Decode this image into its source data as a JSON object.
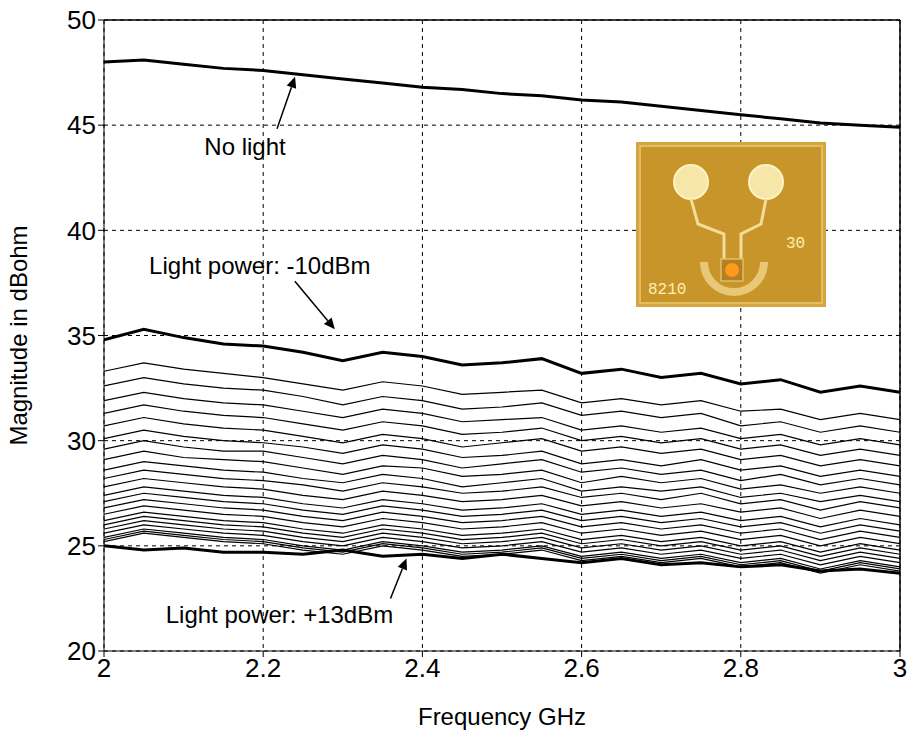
{
  "chart_data": {
    "type": "line",
    "xlabel": "Frequency GHz",
    "ylabel": "Magnitude in  dBohm",
    "x": [
      2,
      2.05,
      2.1,
      2.15,
      2.2,
      2.25,
      2.3,
      2.35,
      2.4,
      2.45,
      2.5,
      2.55,
      2.6,
      2.65,
      2.7,
      2.75,
      2.8,
      2.85,
      2.9,
      2.95,
      3
    ],
    "xlim": [
      2,
      3
    ],
    "xticks": [
      2,
      2.2,
      2.4,
      2.6,
      2.8,
      3
    ],
    "ylim": [
      20,
      50
    ],
    "yticks": [
      20,
      25,
      30,
      35,
      40,
      45,
      50
    ],
    "grid": true,
    "series": [
      {
        "color": "#000000",
        "values": [
          48.0,
          48.1,
          47.9,
          47.7,
          47.6,
          47.4,
          47.2,
          47.0,
          46.8,
          46.7,
          46.5,
          46.4,
          46.2,
          46.1,
          45.9,
          45.7,
          45.5,
          45.3,
          45.1,
          45.0,
          44.9
        ]
      },
      {
        "color": "#000000",
        "values": [
          34.8,
          35.3,
          34.9,
          34.6,
          34.5,
          34.2,
          33.8,
          34.2,
          34.0,
          33.6,
          33.7,
          33.9,
          33.2,
          33.4,
          33.0,
          33.2,
          32.7,
          32.9,
          32.3,
          32.6,
          32.3
        ]
      },
      {
        "color": "#000000",
        "values": [
          33.3,
          33.7,
          33.4,
          33.2,
          33.0,
          32.7,
          32.4,
          32.8,
          32.6,
          32.2,
          32.3,
          32.4,
          31.8,
          32.0,
          31.7,
          31.9,
          31.4,
          31.5,
          31.0,
          31.3,
          31.0
        ]
      },
      {
        "color": "#000000",
        "values": [
          32.6,
          33.0,
          32.7,
          32.5,
          32.4,
          32.1,
          31.7,
          32.1,
          31.9,
          31.5,
          31.6,
          31.8,
          31.2,
          31.4,
          31.1,
          31.3,
          30.7,
          30.9,
          30.4,
          30.7,
          30.4
        ]
      },
      {
        "color": "#000000",
        "values": [
          31.9,
          32.3,
          32.0,
          31.8,
          31.7,
          31.4,
          31.1,
          31.5,
          31.3,
          30.9,
          31.0,
          31.1,
          30.5,
          30.7,
          30.4,
          30.6,
          30.1,
          30.3,
          29.8,
          30.1,
          29.8
        ]
      },
      {
        "color": "#000000",
        "values": [
          31.3,
          31.7,
          31.4,
          31.2,
          31.1,
          30.8,
          30.5,
          30.9,
          30.7,
          30.3,
          30.4,
          30.6,
          30.0,
          30.2,
          29.9,
          30.1,
          29.6,
          29.8,
          29.3,
          29.6,
          29.3
        ]
      },
      {
        "color": "#000000",
        "values": [
          30.7,
          31.1,
          30.8,
          30.6,
          30.5,
          30.2,
          29.9,
          30.3,
          30.1,
          29.7,
          29.9,
          30.1,
          29.5,
          29.7,
          29.4,
          29.6,
          29.1,
          29.3,
          28.8,
          29.1,
          28.8
        ]
      },
      {
        "color": "#000000",
        "values": [
          30.1,
          30.5,
          30.2,
          30.0,
          29.9,
          29.7,
          29.4,
          29.8,
          29.6,
          29.2,
          29.3,
          29.5,
          28.9,
          29.1,
          28.8,
          29.1,
          28.6,
          28.8,
          28.3,
          28.6,
          28.3
        ]
      },
      {
        "color": "#000000",
        "values": [
          29.6,
          30.0,
          29.7,
          29.5,
          29.5,
          29.2,
          28.9,
          29.3,
          29.1,
          28.7,
          28.9,
          29.1,
          28.5,
          28.7,
          28.4,
          28.6,
          28.1,
          28.4,
          27.9,
          28.2,
          27.9
        ]
      },
      {
        "color": "#000000",
        "values": [
          29.1,
          29.5,
          29.2,
          29.1,
          29.0,
          28.7,
          28.4,
          28.8,
          28.7,
          28.3,
          28.4,
          28.6,
          28.0,
          28.3,
          28.0,
          28.2,
          27.7,
          27.9,
          27.5,
          27.8,
          27.5
        ]
      },
      {
        "color": "#000000",
        "values": [
          28.6,
          29.0,
          28.8,
          28.6,
          28.5,
          28.2,
          28.0,
          28.4,
          28.2,
          27.8,
          28.0,
          28.2,
          27.6,
          27.8,
          27.6,
          27.8,
          27.3,
          27.5,
          27.1,
          27.4,
          27.1
        ]
      },
      {
        "color": "#000000",
        "values": [
          28.2,
          28.6,
          28.4,
          28.2,
          28.1,
          27.9,
          27.6,
          28.0,
          27.8,
          27.5,
          27.6,
          27.8,
          27.3,
          27.5,
          27.2,
          27.5,
          27.0,
          27.2,
          26.7,
          27.1,
          26.8
        ]
      },
      {
        "color": "#000000",
        "values": [
          27.8,
          28.2,
          28.0,
          27.8,
          27.7,
          27.4,
          27.2,
          27.6,
          27.4,
          27.1,
          27.2,
          27.4,
          26.9,
          27.1,
          26.8,
          27.0,
          26.6,
          26.8,
          26.3,
          26.7,
          26.4
        ]
      },
      {
        "color": "#000000",
        "values": [
          27.4,
          27.8,
          27.6,
          27.4,
          27.3,
          27.0,
          26.8,
          27.2,
          27.0,
          26.7,
          26.8,
          27.0,
          26.5,
          26.7,
          26.4,
          26.6,
          26.2,
          26.4,
          25.9,
          26.3,
          26.0
        ]
      },
      {
        "color": "#000000",
        "values": [
          27.1,
          27.5,
          27.3,
          27.1,
          27.0,
          26.7,
          26.5,
          26.9,
          26.7,
          26.4,
          26.5,
          26.7,
          26.2,
          26.4,
          26.1,
          26.3,
          25.9,
          26.1,
          25.6,
          26.0,
          25.7
        ]
      },
      {
        "color": "#000000",
        "values": [
          26.8,
          27.2,
          27.0,
          26.8,
          26.7,
          26.4,
          26.2,
          26.6,
          26.4,
          26.1,
          26.2,
          26.4,
          25.9,
          26.1,
          25.8,
          26.0,
          25.6,
          25.8,
          25.3,
          25.7,
          25.4
        ]
      },
      {
        "color": "#000000",
        "values": [
          26.5,
          26.9,
          26.7,
          26.5,
          26.4,
          26.1,
          25.9,
          26.3,
          26.1,
          25.8,
          25.9,
          26.1,
          25.6,
          25.8,
          25.5,
          25.7,
          25.3,
          25.5,
          25.0,
          25.4,
          25.1
        ]
      },
      {
        "color": "#000000",
        "values": [
          26.2,
          26.6,
          26.4,
          26.2,
          26.1,
          25.8,
          25.6,
          26.0,
          25.8,
          25.5,
          25.6,
          25.8,
          25.3,
          25.5,
          25.2,
          25.4,
          25.0,
          25.2,
          24.7,
          25.1,
          24.8
        ]
      },
      {
        "color": "#000000",
        "values": [
          26.0,
          26.4,
          26.2,
          26.0,
          25.9,
          25.6,
          25.4,
          25.8,
          25.6,
          25.3,
          25.4,
          25.6,
          25.1,
          25.3,
          25.0,
          25.2,
          24.8,
          25.0,
          24.5,
          24.9,
          24.6
        ]
      },
      {
        "color": "#000000",
        "values": [
          25.8,
          26.2,
          26.0,
          25.8,
          25.7,
          25.4,
          25.2,
          25.6,
          25.4,
          25.1,
          25.2,
          25.4,
          24.9,
          25.1,
          24.8,
          25.0,
          24.6,
          24.8,
          24.3,
          24.7,
          24.4
        ]
      },
      {
        "color": "#000000",
        "values": [
          25.6,
          26.0,
          25.8,
          25.6,
          25.5,
          25.2,
          25.0,
          25.4,
          25.2,
          24.9,
          25.0,
          25.2,
          24.7,
          24.9,
          24.6,
          24.8,
          24.4,
          24.6,
          24.1,
          24.5,
          24.2
        ]
      },
      {
        "color": "#000000",
        "values": [
          25.4,
          25.8,
          25.6,
          25.4,
          25.3,
          25.0,
          24.8,
          25.2,
          25.0,
          24.7,
          24.8,
          25.0,
          24.5,
          24.7,
          24.4,
          24.6,
          24.2,
          24.4,
          23.9,
          24.3,
          24.0
        ]
      },
      {
        "color": "#000000",
        "values": [
          25.3,
          25.7,
          25.5,
          25.3,
          25.2,
          24.9,
          24.7,
          25.1,
          24.9,
          24.6,
          24.7,
          24.9,
          24.4,
          24.6,
          24.3,
          24.5,
          24.1,
          24.3,
          23.8,
          24.2,
          23.9
        ]
      },
      {
        "color": "#000000",
        "values": [
          25.2,
          25.6,
          25.4,
          25.2,
          25.1,
          24.8,
          24.6,
          25.0,
          24.8,
          24.5,
          24.6,
          24.8,
          24.3,
          24.5,
          24.2,
          24.4,
          24.0,
          24.2,
          23.7,
          24.1,
          23.8
        ]
      },
      {
        "color": "#000000",
        "values": [
          25.0,
          24.8,
          24.9,
          24.7,
          24.7,
          24.6,
          24.8,
          24.5,
          24.6,
          24.4,
          24.6,
          24.4,
          24.2,
          24.4,
          24.1,
          24.2,
          24.0,
          24.1,
          23.8,
          23.9,
          23.7
        ]
      }
    ],
    "annotations": [
      {
        "text": "No light",
        "x": 2.24,
        "y": 47.3
      },
      {
        "text": "Light power: -10dBm",
        "x": 2.29,
        "y": 35.3
      },
      {
        "text": "Light power: +13dBm",
        "x": 2.38,
        "y": 24.4
      }
    ],
    "inset": {
      "labels": [
        "30",
        "8210"
      ]
    }
  }
}
